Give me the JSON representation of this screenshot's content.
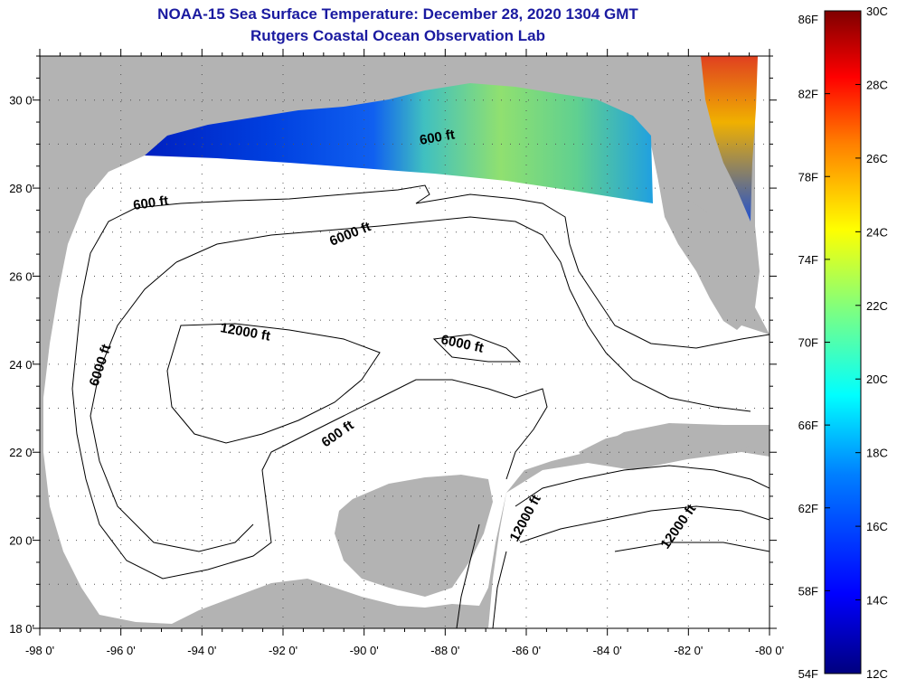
{
  "title": {
    "line1": "NOAA-15 Sea Surface Temperature:  December 28, 2020 1304 GMT",
    "line2": "Rutgers Coastal Ocean Observation Lab"
  },
  "map": {
    "lon_range": [
      -98,
      -80
    ],
    "lat_range": [
      18,
      31
    ],
    "lon_ticks": [
      "-98 0'",
      "-96 0'",
      "-94 0'",
      "-92 0'",
      "-90 0'",
      "-88 0'",
      "-86 0'",
      "-84 0'",
      "-82 0'",
      "-80 0'"
    ],
    "lat_ticks": [
      "30 0'",
      "28 0'",
      "26 0'",
      "24 0'",
      "22 0'",
      "20 0'",
      "18 0'"
    ],
    "contour_labels": [
      "600 ft",
      "600 ft",
      "6000 ft",
      "12000 ft",
      "6000 ft",
      "6000 ft",
      "600 ft",
      "12000 ft",
      "12000 ft"
    ],
    "colors": {
      "land": "#b3b3b3",
      "water": "#ffffff",
      "contour": "#000000",
      "grid": "#555555"
    }
  },
  "colorbar": {
    "f_labels": [
      "86F",
      "82F",
      "78F",
      "74F",
      "70F",
      "66F",
      "62F",
      "58F",
      "54F"
    ],
    "c_labels": [
      "30C",
      "28C",
      "26C",
      "24C",
      "22C",
      "20C",
      "18C",
      "16C",
      "14C",
      "12C"
    ],
    "range_c": [
      12,
      30
    ],
    "range_f": [
      54,
      86
    ],
    "colors": [
      "#00007f",
      "#0000ff",
      "#007fff",
      "#00ffff",
      "#7fff7f",
      "#ffff00",
      "#ff7f00",
      "#ff0000",
      "#7f0000"
    ]
  }
}
